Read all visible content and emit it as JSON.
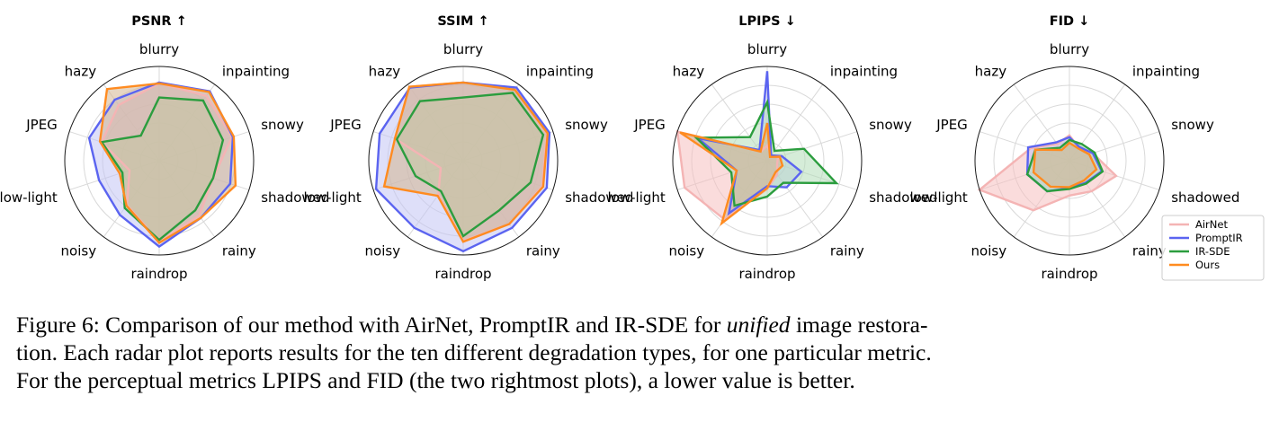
{
  "chart_data": [
    {
      "type": "radar",
      "title": "PSNR ↑",
      "axes": [
        "blurry",
        "inpainting",
        "snowy",
        "shadowed",
        "rainy",
        "raindrop",
        "noisy",
        "low-light",
        "JPEG",
        "hazy"
      ],
      "rlim": [
        0,
        1
      ],
      "series": [
        {
          "name": "AirNet",
          "values": [
            0.82,
            0.85,
            0.81,
            0.6,
            0.72,
            0.86,
            0.58,
            0.33,
            0.64,
            0.73
          ]
        },
        {
          "name": "PromptIR",
          "values": [
            0.83,
            0.91,
            0.82,
            0.79,
            0.75,
            0.91,
            0.71,
            0.67,
            0.78,
            0.8
          ]
        },
        {
          "name": "IR-SDE",
          "values": [
            0.67,
            0.79,
            0.71,
            0.6,
            0.65,
            0.84,
            0.62,
            0.41,
            0.64,
            0.33
          ]
        },
        {
          "name": "Ours",
          "values": [
            0.82,
            0.9,
            0.83,
            0.85,
            0.75,
            0.87,
            0.59,
            0.44,
            0.66,
            0.94
          ]
        }
      ]
    },
    {
      "type": "radar",
      "title": "SSIM ↑",
      "axes": [
        "blurry",
        "inpainting",
        "snowy",
        "shadowed",
        "rainy",
        "raindrop",
        "noisy",
        "low-light",
        "JPEG",
        "hazy"
      ],
      "rlim": [
        0,
        1
      ],
      "series": [
        {
          "name": "AirNet",
          "values": [
            0.83,
            0.94,
            0.93,
            0.88,
            0.83,
            0.85,
            0.45,
            0.25,
            0.76,
            0.97
          ]
        },
        {
          "name": "PromptIR",
          "values": [
            0.83,
            0.96,
            0.96,
            0.93,
            0.88,
            0.96,
            0.88,
            0.97,
            0.93,
            0.96
          ]
        },
        {
          "name": "IR-SDE",
          "values": [
            0.67,
            0.89,
            0.89,
            0.75,
            0.65,
            0.8,
            0.4,
            0.53,
            0.74,
            0.78
          ]
        },
        {
          "name": "Ours",
          "values": [
            0.83,
            0.93,
            0.94,
            0.89,
            0.83,
            0.86,
            0.46,
            0.88,
            0.76,
            0.97
          ]
        }
      ]
    },
    {
      "type": "radar",
      "title": "LPIPS ↓",
      "axes": [
        "blurry",
        "inpainting",
        "snowy",
        "shadowed",
        "rainy",
        "raindrop",
        "noisy",
        "low-light",
        "JPEG",
        "hazy"
      ],
      "rlim": [
        0,
        1
      ],
      "series": [
        {
          "name": "AirNet",
          "values": [
            0.16,
            0.07,
            0.12,
            0.11,
            0.18,
            0.3,
            0.77,
            0.92,
            1.0,
            0.12
          ]
        },
        {
          "name": "PromptIR",
          "values": [
            0.95,
            0.07,
            0.16,
            0.38,
            0.35,
            0.27,
            0.69,
            0.34,
            0.77,
            0.14
          ]
        },
        {
          "name": "IR-SDE",
          "values": [
            0.62,
            0.13,
            0.41,
            0.77,
            0.29,
            0.38,
            0.59,
            0.4,
            0.79,
            0.31
          ]
        },
        {
          "name": "Ours",
          "values": [
            0.4,
            0.05,
            0.14,
            0.17,
            0.15,
            0.29,
            0.82,
            0.34,
            0.97,
            0.12
          ]
        }
      ]
    },
    {
      "type": "radar",
      "title": "FID ↓",
      "axes": [
        "blurry",
        "inpainting",
        "snowy",
        "shadowed",
        "rainy",
        "raindrop",
        "noisy",
        "low-light",
        "JPEG",
        "hazy"
      ],
      "rlim": [
        0,
        1
      ],
      "series": [
        {
          "name": "AirNet",
          "values": [
            0.27,
            0.17,
            0.26,
            0.52,
            0.4,
            0.37,
            0.65,
            1.0,
            0.43,
            0.22
          ]
        },
        {
          "name": "PromptIR",
          "values": [
            0.25,
            0.18,
            0.26,
            0.36,
            0.29,
            0.29,
            0.4,
            0.47,
            0.46,
            0.24
          ]
        },
        {
          "name": "IR-SDE",
          "values": [
            0.22,
            0.22,
            0.28,
            0.37,
            0.3,
            0.3,
            0.4,
            0.47,
            0.38,
            0.17
          ]
        },
        {
          "name": "Ours",
          "values": [
            0.19,
            0.16,
            0.22,
            0.3,
            0.26,
            0.28,
            0.34,
            0.4,
            0.38,
            0.14
          ]
        }
      ]
    }
  ],
  "series_colors": {
    "AirNet": "#f4b4b4",
    "PromptIR": "#5b64f0",
    "IR-SDE": "#2b9d3e",
    "Ours": "#ff8b20"
  },
  "series_fill_colors": {
    "AirNet": "#f5c0c0",
    "PromptIR": "#c2c4f4",
    "IR-SDE": "#b3dcb8",
    "Ours": "#d3b58f"
  },
  "legend": {
    "entries": [
      "AirNet",
      "PromptIR",
      "IR-SDE",
      "Ours"
    ],
    "placement": "bottom-right"
  },
  "caption": {
    "label": "Figure 6:",
    "line1_a": "Comparison of our method with AirNet, PromptIR and IR-SDE for",
    "line1_em": "unified",
    "line1_b": "image restora-",
    "line2": "tion. Each radar plot reports results for the ten different degradation types, for one particular metric.",
    "line3": "For the perceptual metrics LPIPS and FID (the two rightmost plots), a lower value is better."
  }
}
